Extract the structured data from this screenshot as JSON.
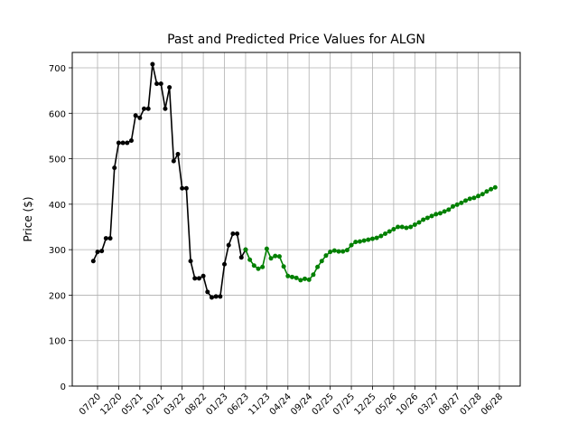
{
  "chart_data": {
    "type": "line",
    "title": "Past and Predicted Price Values for ALGN",
    "xlabel": "",
    "ylabel": "Price ($)",
    "ylim": [
      0,
      730
    ],
    "yticks": [
      0,
      100,
      200,
      300,
      400,
      500,
      600,
      700
    ],
    "xlim": [
      -1,
      95
    ],
    "xticks": [
      {
        "pos": 0,
        "label": "07/20"
      },
      {
        "pos": 5,
        "label": "12/20"
      },
      {
        "pos": 10,
        "label": "05/21"
      },
      {
        "pos": 15,
        "label": "10/21"
      },
      {
        "pos": 20,
        "label": "03/22"
      },
      {
        "pos": 25,
        "label": "08/22"
      },
      {
        "pos": 30,
        "label": "01/23"
      },
      {
        "pos": 35,
        "label": "06/23"
      },
      {
        "pos": 40,
        "label": "11/23"
      },
      {
        "pos": 45,
        "label": "04/24"
      },
      {
        "pos": 50,
        "label": "09/24"
      },
      {
        "pos": 55,
        "label": "02/25"
      },
      {
        "pos": 60,
        "label": "07/25"
      },
      {
        "pos": 65,
        "label": "12/25"
      },
      {
        "pos": 70,
        "label": "05/26"
      },
      {
        "pos": 75,
        "label": "10/26"
      },
      {
        "pos": 80,
        "label": "03/27"
      },
      {
        "pos": 85,
        "label": "08/27"
      },
      {
        "pos": 90,
        "label": "01/28"
      },
      {
        "pos": 95,
        "label": "06/28"
      }
    ],
    "grid": true,
    "series": [
      {
        "color": "#000000",
        "points": [
          [
            -1,
            275
          ],
          [
            0,
            295
          ],
          [
            1,
            297
          ],
          [
            2,
            325
          ],
          [
            3,
            325
          ],
          [
            4,
            480
          ],
          [
            5,
            535
          ],
          [
            6,
            535
          ],
          [
            7,
            535
          ],
          [
            8,
            540
          ],
          [
            9,
            595
          ],
          [
            10,
            590
          ],
          [
            11,
            610
          ],
          [
            12,
            610
          ],
          [
            13,
            708
          ],
          [
            14,
            665
          ],
          [
            15,
            665
          ],
          [
            16,
            610
          ],
          [
            17,
            657
          ],
          [
            18,
            495
          ],
          [
            19,
            510
          ],
          [
            20,
            435
          ],
          [
            21,
            435
          ],
          [
            22,
            275
          ],
          [
            23,
            237
          ],
          [
            24,
            237
          ],
          [
            25,
            242
          ],
          [
            26,
            207
          ],
          [
            27,
            195
          ],
          [
            28,
            197
          ],
          [
            29,
            197
          ],
          [
            30,
            268
          ],
          [
            31,
            310
          ],
          [
            32,
            335
          ],
          [
            33,
            335
          ],
          [
            34,
            283
          ],
          [
            35,
            300
          ]
        ]
      },
      {
        "color": "#008000",
        "points": [
          [
            35,
            300
          ],
          [
            36,
            278
          ],
          [
            37,
            265
          ],
          [
            38,
            258
          ],
          [
            39,
            262
          ],
          [
            40,
            302
          ],
          [
            41,
            281
          ],
          [
            42,
            286
          ],
          [
            43,
            285
          ],
          [
            44,
            263
          ],
          [
            45,
            242
          ],
          [
            46,
            240
          ],
          [
            47,
            238
          ],
          [
            48,
            233
          ],
          [
            49,
            236
          ],
          [
            50,
            234
          ],
          [
            51,
            245
          ],
          [
            52,
            262
          ],
          [
            53,
            275
          ],
          [
            54,
            287
          ],
          [
            55,
            295
          ],
          [
            56,
            298
          ],
          [
            57,
            296
          ],
          [
            58,
            296
          ],
          [
            59,
            299
          ],
          [
            60,
            310
          ],
          [
            61,
            317
          ],
          [
            62,
            318
          ],
          [
            63,
            320
          ],
          [
            64,
            322
          ],
          [
            65,
            324
          ],
          [
            66,
            326
          ],
          [
            67,
            330
          ],
          [
            68,
            335
          ],
          [
            69,
            340
          ],
          [
            70,
            345
          ],
          [
            71,
            350
          ],
          [
            72,
            350
          ],
          [
            73,
            348
          ],
          [
            74,
            350
          ],
          [
            75,
            355
          ],
          [
            76,
            360
          ],
          [
            77,
            366
          ],
          [
            78,
            370
          ],
          [
            79,
            374
          ],
          [
            80,
            378
          ],
          [
            81,
            380
          ],
          [
            82,
            384
          ],
          [
            83,
            388
          ],
          [
            84,
            395
          ],
          [
            85,
            399
          ],
          [
            86,
            403
          ],
          [
            87,
            408
          ],
          [
            88,
            412
          ],
          [
            89,
            414
          ],
          [
            90,
            418
          ],
          [
            91,
            422
          ],
          [
            92,
            428
          ],
          [
            93,
            433
          ],
          [
            94,
            437
          ]
        ]
      }
    ]
  }
}
